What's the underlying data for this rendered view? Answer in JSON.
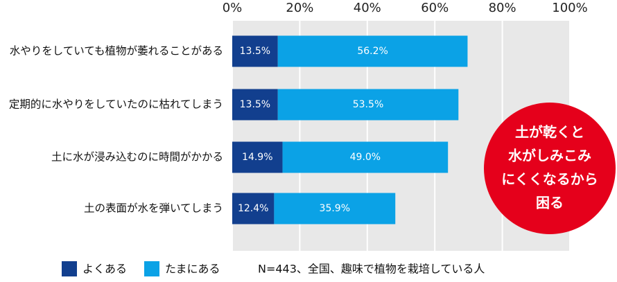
{
  "chart_data": {
    "type": "stacked-bar-horizontal",
    "categories": [
      "水やりをしていても植物が萎れることがある",
      "定期的に水やりをしていたのに枯れてしまう",
      "土に水が浸み込むのに時間がかかる",
      "土の表面が水を弾いてしまう"
    ],
    "series": [
      {
        "name": "よくある",
        "color": "#123f8e",
        "values": [
          13.5,
          13.5,
          14.9,
          12.4
        ],
        "value_labels": [
          "13.5%",
          "13.5%",
          "14.9%",
          "12.4%"
        ]
      },
      {
        "name": "たまにある",
        "color": "#0ba2e6",
        "values": [
          56.2,
          53.5,
          49.0,
          35.9
        ],
        "value_labels": [
          "56.2%",
          "53.5%",
          "49.0%",
          "35.9%"
        ]
      }
    ],
    "xlim": [
      0,
      100
    ],
    "xticks": [
      {
        "value": 0,
        "label": "0%"
      },
      {
        "value": 20,
        "label": "20%"
      },
      {
        "value": 40,
        "label": "40%"
      },
      {
        "value": 60,
        "label": "60%"
      },
      {
        "value": 80,
        "label": "80%"
      },
      {
        "value": 100,
        "label": "100%"
      }
    ],
    "grid": true,
    "annotation": [
      "土が乾くと",
      "水がしみこみ",
      "にくくなるから",
      "困る"
    ],
    "note": "N=443、全国、趣味で植物を栽培している人"
  }
}
